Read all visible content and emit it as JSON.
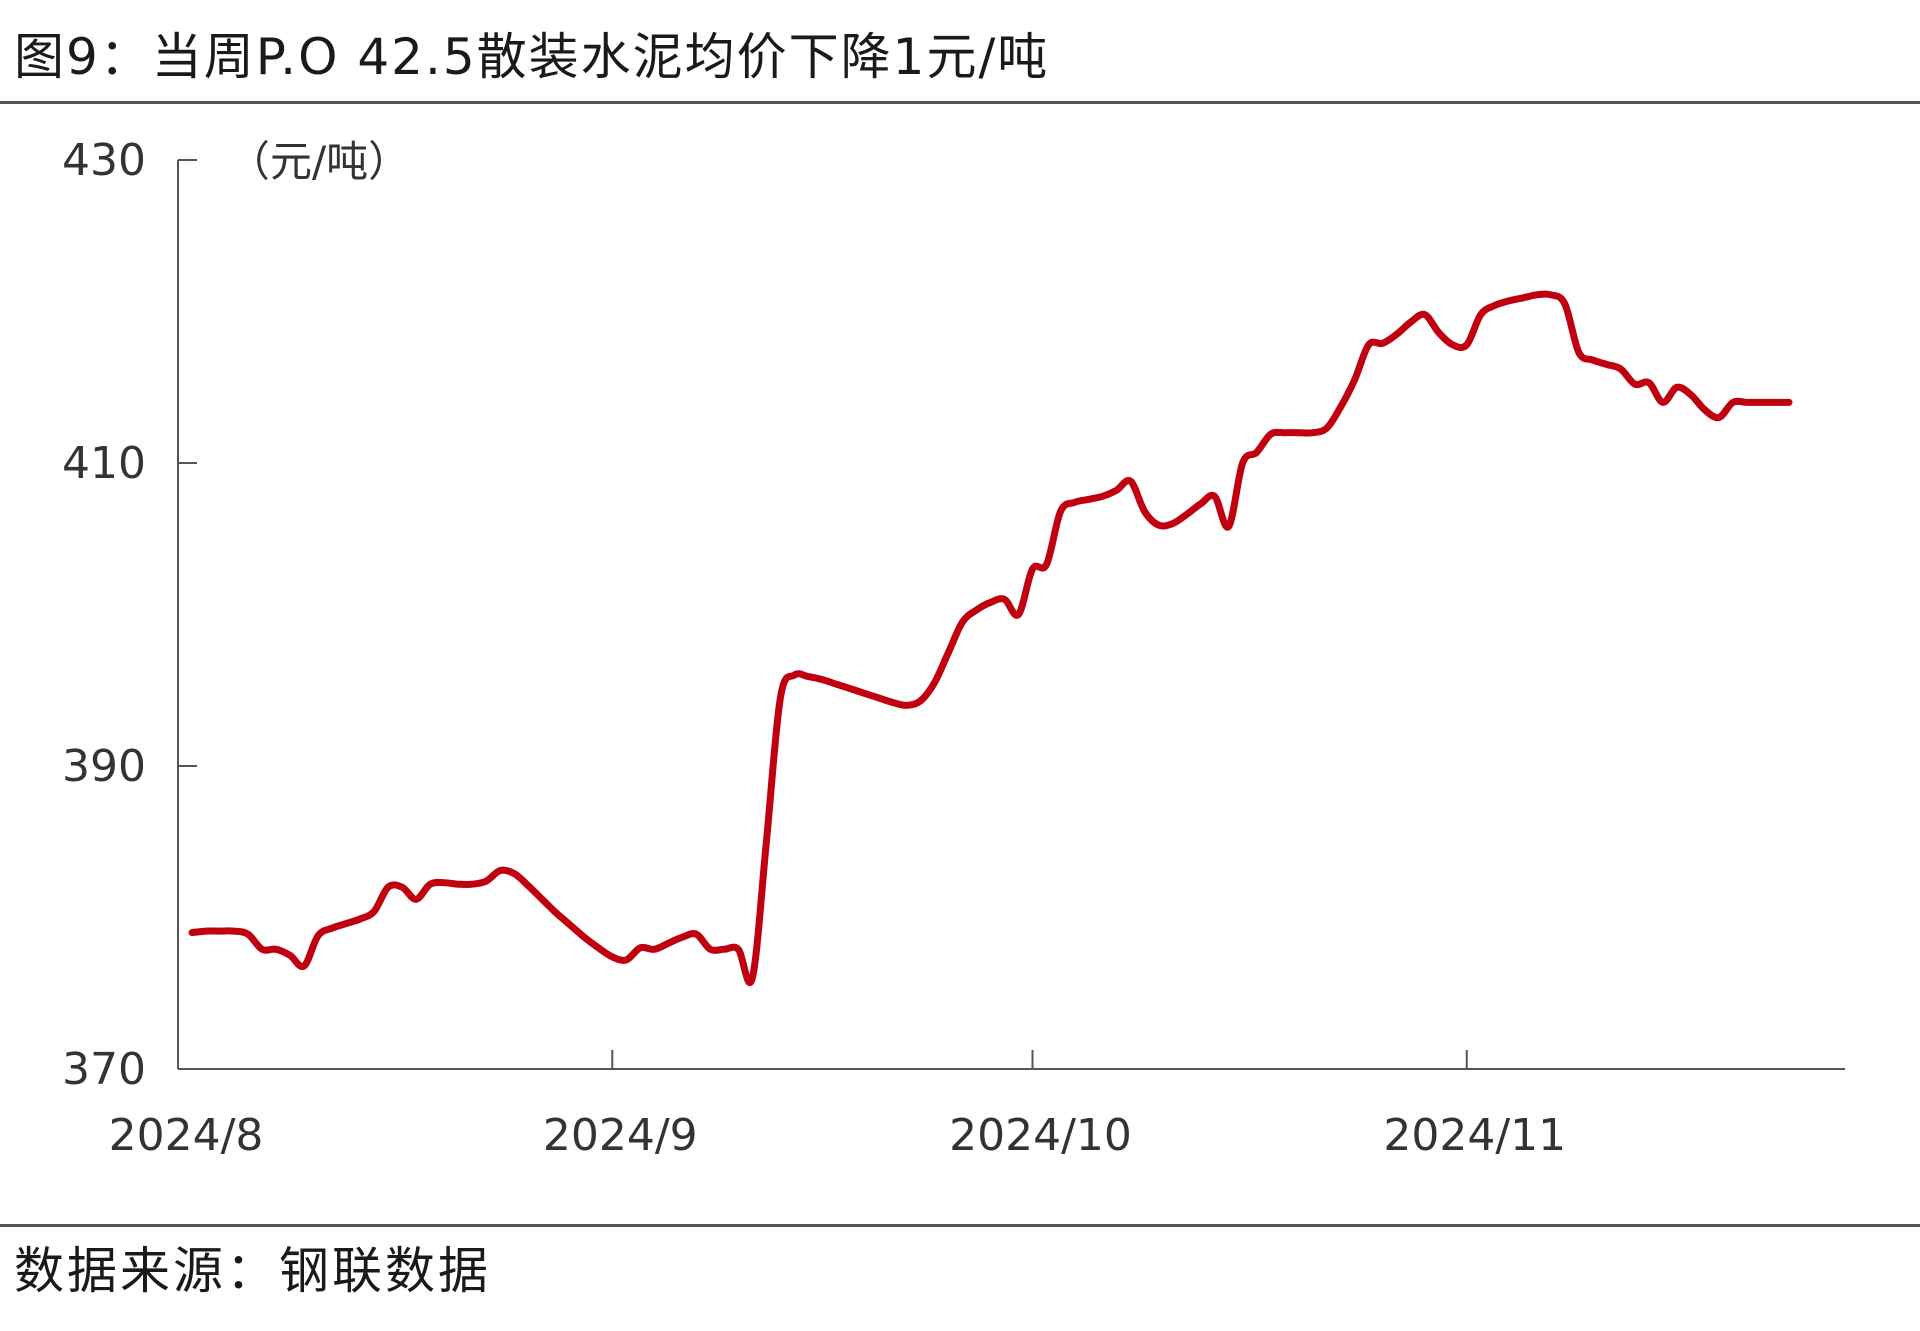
{
  "title": "图9：当周P.O 42.5散装水泥均价下降1元/吨",
  "source": "数据来源：钢联数据",
  "chart_data": {
    "type": "line",
    "ylabel": "（元/吨）",
    "ylim": [
      370,
      430
    ],
    "yticks": [
      370,
      390,
      410,
      430
    ],
    "xticks": [
      "2024/8",
      "2024/9",
      "2024/10",
      "2024/11"
    ],
    "grid": false,
    "series": [
      {
        "color": "#c0000e",
        "points": [
          [
            "2024-08-01",
            379.0
          ],
          [
            "2024-08-02",
            379.1
          ],
          [
            "2024-08-03",
            379.1
          ],
          [
            "2024-08-04",
            379.1
          ],
          [
            "2024-08-05",
            378.9
          ],
          [
            "2024-08-06",
            377.9
          ],
          [
            "2024-08-07",
            377.9
          ],
          [
            "2024-08-08",
            377.5
          ],
          [
            "2024-08-09",
            376.8
          ],
          [
            "2024-08-10",
            378.8
          ],
          [
            "2024-08-11",
            379.3
          ],
          [
            "2024-08-12",
            379.6
          ],
          [
            "2024-08-13",
            379.9
          ],
          [
            "2024-08-14",
            380.4
          ],
          [
            "2024-08-15",
            382.0
          ],
          [
            "2024-08-16",
            382.0
          ],
          [
            "2024-08-17",
            381.2
          ],
          [
            "2024-08-18",
            382.2
          ],
          [
            "2024-08-19",
            382.3
          ],
          [
            "2024-08-20",
            382.2
          ],
          [
            "2024-08-21",
            382.2
          ],
          [
            "2024-08-22",
            382.4
          ],
          [
            "2024-08-23",
            383.1
          ],
          [
            "2024-08-24",
            382.9
          ],
          [
            "2024-08-25",
            382.1
          ],
          [
            "2024-08-26",
            381.2
          ],
          [
            "2024-08-27",
            380.3
          ],
          [
            "2024-08-28",
            379.5
          ],
          [
            "2024-08-29",
            378.7
          ],
          [
            "2024-08-30",
            378.0
          ],
          [
            "2024-08-31",
            377.4
          ],
          [
            "2024-09-01",
            377.2
          ],
          [
            "2024-09-02",
            378.0
          ],
          [
            "2024-09-03",
            377.9
          ],
          [
            "2024-09-04",
            378.3
          ],
          [
            "2024-09-05",
            378.7
          ],
          [
            "2024-09-06",
            378.9
          ],
          [
            "2024-09-07",
            377.9
          ],
          [
            "2024-09-08",
            377.9
          ],
          [
            "2024-09-09",
            377.9
          ],
          [
            "2024-09-10",
            376.0
          ],
          [
            "2024-09-11",
            385.0
          ],
          [
            "2024-09-12",
            394.5
          ],
          [
            "2024-09-13",
            396.0
          ],
          [
            "2024-09-14",
            395.9
          ],
          [
            "2024-09-15",
            395.7
          ],
          [
            "2024-09-16",
            395.4
          ],
          [
            "2024-09-17",
            395.1
          ],
          [
            "2024-09-18",
            394.8
          ],
          [
            "2024-09-19",
            394.5
          ],
          [
            "2024-09-20",
            394.2
          ],
          [
            "2024-09-21",
            394.0
          ],
          [
            "2024-09-22",
            394.3
          ],
          [
            "2024-09-23",
            395.5
          ],
          [
            "2024-09-24",
            397.5
          ],
          [
            "2024-09-25",
            399.5
          ],
          [
            "2024-09-26",
            400.3
          ],
          [
            "2024-09-27",
            400.8
          ],
          [
            "2024-09-28",
            401.0
          ],
          [
            "2024-09-29",
            400.0
          ],
          [
            "2024-09-30",
            403.0
          ],
          [
            "2024-10-01",
            403.3
          ],
          [
            "2024-10-02",
            406.8
          ],
          [
            "2024-10-03",
            407.4
          ],
          [
            "2024-10-04",
            407.6
          ],
          [
            "2024-10-05",
            407.8
          ],
          [
            "2024-10-06",
            408.2
          ],
          [
            "2024-10-07",
            408.8
          ],
          [
            "2024-10-08",
            406.8
          ],
          [
            "2024-10-09",
            405.9
          ],
          [
            "2024-10-10",
            406.0
          ],
          [
            "2024-10-11",
            406.6
          ],
          [
            "2024-10-12",
            407.3
          ],
          [
            "2024-10-13",
            407.8
          ],
          [
            "2024-10-14",
            405.8
          ],
          [
            "2024-10-15",
            410.0
          ],
          [
            "2024-10-16",
            410.7
          ],
          [
            "2024-10-17",
            411.9
          ],
          [
            "2024-10-18",
            412.0
          ],
          [
            "2024-10-19",
            412.0
          ],
          [
            "2024-10-20",
            412.0
          ],
          [
            "2024-10-21",
            412.3
          ],
          [
            "2024-10-22",
            413.7
          ],
          [
            "2024-10-23",
            415.5
          ],
          [
            "2024-10-24",
            417.8
          ],
          [
            "2024-10-25",
            417.9
          ],
          [
            "2024-10-26",
            418.5
          ],
          [
            "2024-10-27",
            419.3
          ],
          [
            "2024-10-28",
            419.8
          ],
          [
            "2024-10-29",
            418.6
          ],
          [
            "2024-10-30",
            417.8
          ],
          [
            "2024-10-31",
            417.8
          ],
          [
            "2024-11-01",
            419.8
          ],
          [
            "2024-11-02",
            420.4
          ],
          [
            "2024-11-03",
            420.7
          ],
          [
            "2024-11-04",
            420.9
          ],
          [
            "2024-11-05",
            421.1
          ],
          [
            "2024-11-06",
            421.1
          ],
          [
            "2024-11-07",
            420.5
          ],
          [
            "2024-11-08",
            417.3
          ],
          [
            "2024-11-09",
            416.8
          ],
          [
            "2024-11-10",
            416.5
          ],
          [
            "2024-11-11",
            416.2
          ],
          [
            "2024-11-12",
            415.2
          ],
          [
            "2024-11-13",
            415.3
          ],
          [
            "2024-11-14",
            414.0
          ],
          [
            "2024-11-15",
            415.0
          ],
          [
            "2024-11-16",
            414.5
          ],
          [
            "2024-11-17",
            413.5
          ],
          [
            "2024-11-18",
            413.0
          ],
          [
            "2024-11-19",
            414.0
          ],
          [
            "2024-11-20",
            414.0
          ],
          [
            "2024-11-21",
            414.0
          ],
          [
            "2024-11-22",
            414.0
          ],
          [
            "2024-11-23",
            414.0
          ]
        ]
      }
    ]
  }
}
